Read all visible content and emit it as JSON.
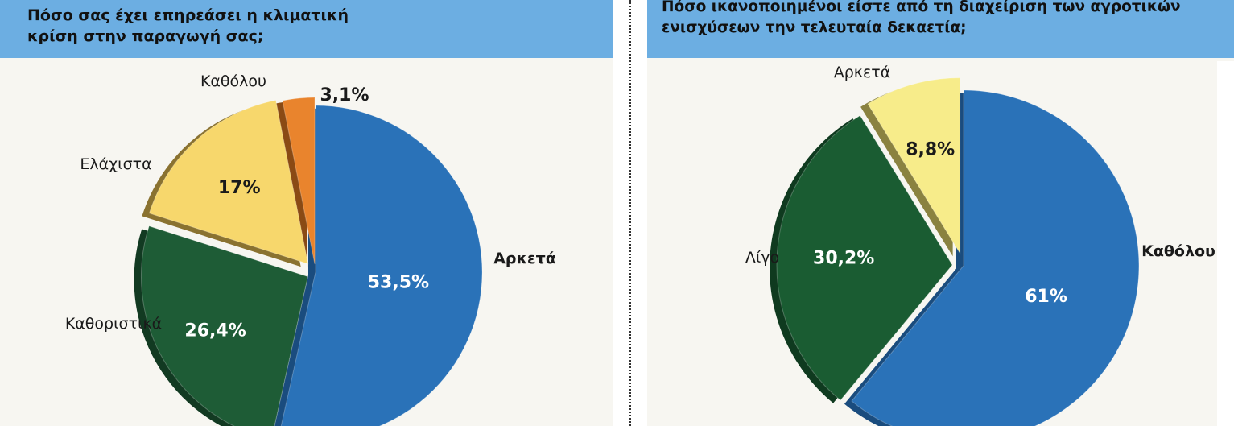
{
  "chart_data": [
    {
      "type": "pie",
      "title": "Πόσο σας έχει επηρεάσει η κλιματική\nκρίση στην παραγωγή σας;",
      "slices": [
        {
          "label": "Αρκετά",
          "value": 53.5,
          "value_label": "53,5%",
          "color": "#2a72b8",
          "side": "#1a4c7e"
        },
        {
          "label": "Καθοριστικά",
          "value": 26.4,
          "value_label": "26,4%",
          "color": "#1e5c36",
          "side": "#123a22"
        },
        {
          "label": "Ελάχιστα",
          "value": 17,
          "value_label": "17%",
          "color": "#f7d76c",
          "side": "#8a7230"
        },
        {
          "label": "Καθόλου",
          "value": 3.1,
          "value_label": "3,1%",
          "color": "#e9842d",
          "side": "#8a4a14"
        }
      ]
    },
    {
      "type": "pie",
      "title": "Πόσο ικανοποιημένοι είστε από τη διαχείριση των αγροτικών\nενισχύσεων την τελευταία δεκαετία;",
      "slices": [
        {
          "label": "Καθόλου",
          "value": 61,
          "value_label": "61%",
          "color": "#2a72b8",
          "side": "#1a4c7e"
        },
        {
          "label": "Λίγο",
          "value": 30.2,
          "value_label": "30,2%",
          "color": "#1a5c32",
          "side": "#0f3a1f"
        },
        {
          "label": "Αρκετά",
          "value": 8.8,
          "value_label": "8,8%",
          "color": "#f7ec8a",
          "side": "#8a8240"
        }
      ]
    }
  ]
}
